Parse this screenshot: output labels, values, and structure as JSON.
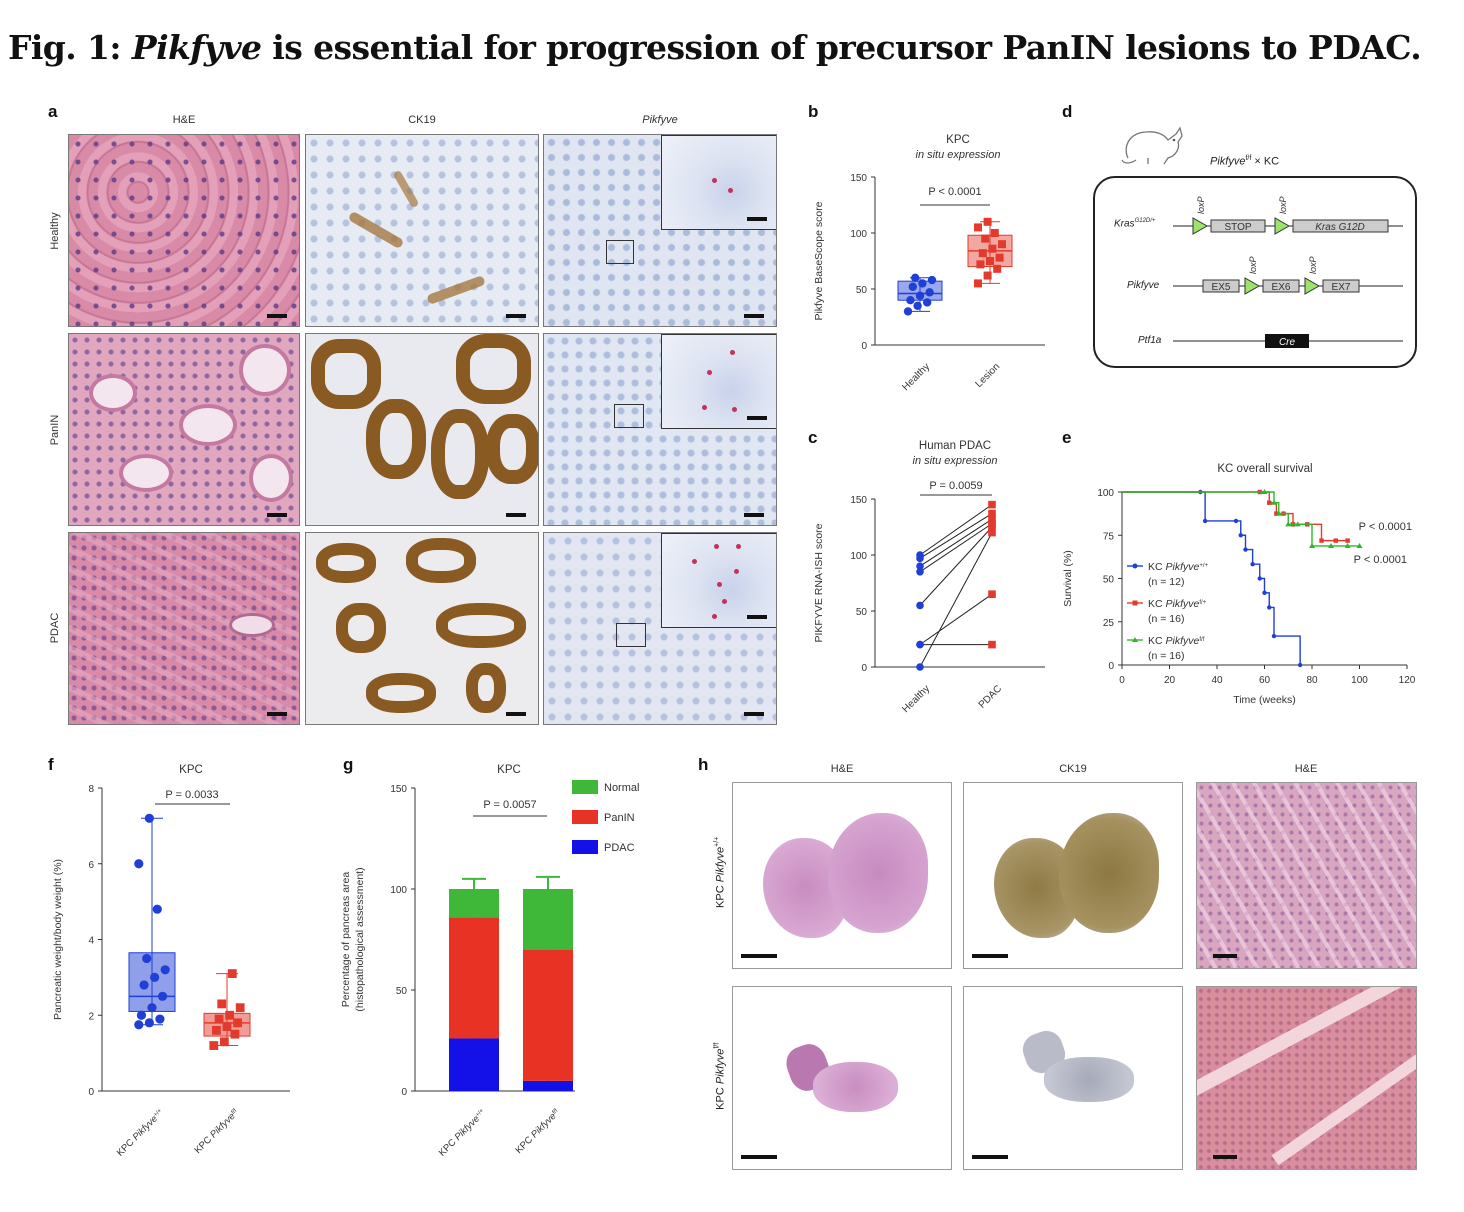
{
  "title": {
    "prefix": "Fig. 1: ",
    "gene": "Pikfyve",
    "rest": " is essential for progression of precursor PanIN lesions to PDAC."
  },
  "panel_letters": {
    "a": "a",
    "b": "b",
    "c": "c",
    "d": "d",
    "e": "e",
    "f": "f",
    "g": "g",
    "h": "h"
  },
  "panel_a": {
    "columns": [
      "H&E",
      "CK19",
      "Pikfyve"
    ],
    "rows": [
      "Healthy",
      "PanIN",
      "PDAC"
    ],
    "colors": {
      "he_base": "#d98aa6",
      "he_nuclei": "#5b3a87",
      "ck19_stain": "#8a5a23",
      "ck19_bg": "#e7ecf4",
      "ish_bg": "#dfe5f1",
      "ish_dot": "#c2325a"
    }
  },
  "panel_d": {
    "cross_label": "Pikfyve",
    "cross_sup": "f/f",
    "cross_suffix": " × KC",
    "kras_label": "Kras",
    "kras_sup": "G12D/+",
    "pikfyve_label": "Pikfyve",
    "ptf1a_label": "Ptf1a",
    "loxp": "loxP",
    "stop": "STOP",
    "kras_box": "Kras G12D",
    "ex5": "EX5",
    "ex6": "EX6",
    "ex7": "EX7",
    "cre": "Cre"
  },
  "panel_h": {
    "columns": [
      "H&E",
      "CK19",
      "H&E"
    ],
    "row_labels": [
      {
        "prefix": "KPC ",
        "gene": "Pikfyve",
        "sup": "+/+"
      },
      {
        "prefix": "KPC ",
        "gene": "Pikfyve",
        "sup": "f/f"
      }
    ]
  },
  "chart_data": [
    {
      "panel": "b",
      "type": "box",
      "title": "KPC",
      "subtitle": "in situ expression",
      "ylabel": "Pikfyve BaseScope score",
      "ylim": [
        0,
        150
      ],
      "yticks": [
        0,
        50,
        100,
        150
      ],
      "categories": [
        "Healthy",
        "Lesion"
      ],
      "annotation": "P < 0.0001",
      "colors": [
        "#1f3fd6",
        "#e23b2e"
      ],
      "series": [
        {
          "category": "Healthy",
          "points": [
            30,
            35,
            38,
            40,
            44,
            47,
            52,
            55,
            58,
            60
          ],
          "box": {
            "min": 30,
            "q1": 40,
            "median": 46,
            "q3": 57,
            "max": 60
          }
        },
        {
          "category": "Lesion",
          "points": [
            55,
            62,
            68,
            72,
            75,
            78,
            82,
            86,
            90,
            95,
            100,
            105,
            110
          ],
          "box": {
            "min": 55,
            "q1": 70,
            "median": 84,
            "q3": 98,
            "max": 110
          }
        }
      ]
    },
    {
      "panel": "c",
      "type": "line",
      "title": "Human PDAC",
      "subtitle": "in situ expression",
      "ylabel": "PIKFYVE RNA-ISH score",
      "ylim": [
        0,
        150
      ],
      "yticks": [
        0,
        50,
        100,
        150
      ],
      "categories": [
        "Healthy",
        "PDAC"
      ],
      "annotation": "P = 0.0059",
      "colors": [
        "#1f3fd6",
        "#e23b2e"
      ],
      "pairs": [
        [
          100,
          145
        ],
        [
          97,
          137
        ],
        [
          90,
          132
        ],
        [
          85,
          128
        ],
        [
          55,
          125
        ],
        [
          20,
          65
        ],
        [
          20,
          20
        ],
        [
          0,
          120
        ]
      ]
    },
    {
      "panel": "e",
      "type": "line",
      "title": "KC overall survival",
      "xlabel": "Time (weeks)",
      "ylabel": "Survival (%)",
      "xlim": [
        0,
        120
      ],
      "ylim": [
        0,
        100
      ],
      "xticks": [
        0,
        20,
        40,
        60,
        80,
        100,
        120
      ],
      "yticks": [
        0,
        25,
        50,
        75,
        100
      ],
      "annotations": [
        "P < 0.0001",
        "P < 0.0001"
      ],
      "series": [
        {
          "name": "KC Pikfyve",
          "sup": "+/+",
          "n": "(n = 12)",
          "color": "#1f3fd6",
          "x": [
            0,
            33,
            35,
            48,
            50,
            52,
            55,
            58,
            60,
            62,
            64,
            75
          ],
          "y": [
            100,
            100,
            83.3,
            83.3,
            75,
            66.7,
            58.3,
            50,
            41.7,
            33.3,
            16.7,
            0
          ]
        },
        {
          "name": "KC Pikfyve",
          "sup": "f/+",
          "n": "(n = 16)",
          "color": "#e23b2e",
          "x": [
            0,
            58,
            62,
            65,
            68,
            72,
            78,
            84,
            90,
            95
          ],
          "y": [
            100,
            100,
            93.8,
            87.5,
            87.5,
            81.3,
            81.3,
            71.9,
            71.9,
            71.9
          ]
        },
        {
          "name": "KC Pikfyve",
          "sup": "f/f",
          "n": "(n = 16)",
          "color": "#2fb82f",
          "x": [
            0,
            60,
            64,
            66,
            70,
            74,
            80,
            88,
            95,
            100
          ],
          "y": [
            100,
            100,
            93.8,
            87.5,
            81.3,
            81.3,
            68.8,
            68.8,
            68.8,
            68.8
          ]
        }
      ]
    },
    {
      "panel": "f",
      "type": "box",
      "title": "KPC",
      "ylabel": "Pancreatic weight/body weight (%)",
      "ylim": [
        0,
        8
      ],
      "yticks": [
        0,
        2,
        4,
        6,
        8
      ],
      "categories": [
        {
          "prefix": "KPC ",
          "gene": "Pikfyve",
          "sup": "+/+"
        },
        {
          "prefix": "KPC ",
          "gene": "Pikfyve",
          "sup": "f/f"
        }
      ],
      "annotation": "P = 0.0033",
      "colors": [
        "#1f3fd6",
        "#e23b2e"
      ],
      "series": [
        {
          "points": [
            1.75,
            1.8,
            1.9,
            2.0,
            2.2,
            2.5,
            2.8,
            3.0,
            3.2,
            3.5,
            4.8,
            6.0,
            7.2
          ],
          "box": {
            "min": 1.75,
            "q1": 2.1,
            "median": 2.5,
            "q3": 3.65,
            "max": 7.2
          }
        },
        {
          "points": [
            1.2,
            1.3,
            1.5,
            1.6,
            1.7,
            1.8,
            1.9,
            2.0,
            2.2,
            2.3,
            3.1
          ],
          "box": {
            "min": 1.2,
            "q1": 1.45,
            "median": 1.8,
            "q3": 2.05,
            "max": 3.1
          }
        }
      ]
    },
    {
      "panel": "g",
      "type": "bar",
      "stacked": true,
      "title": "KPC",
      "ylabel": "Percentage of pancreas area",
      "ylabel2": "(histopathological assessment)",
      "ylim": [
        0,
        150
      ],
      "yticks": [
        0,
        50,
        100,
        150
      ],
      "categories": [
        {
          "prefix": "KPC ",
          "gene": "Pikfyve",
          "sup": "+/+"
        },
        {
          "prefix": "KPC ",
          "gene": "Pikfyve",
          "sup": "f/f"
        }
      ],
      "annotation": "P = 0.0057",
      "series": [
        {
          "name": "PDAC",
          "color": "#1411e8",
          "values": [
            26,
            5
          ],
          "err": [
            8,
            2
          ]
        },
        {
          "name": "PanIN",
          "color": "#e83324",
          "values": [
            60,
            65
          ],
          "err": [
            7,
            6
          ]
        },
        {
          "name": "Normal",
          "color": "#3fb83a",
          "values": [
            14,
            30
          ],
          "err": [
            5,
            6
          ]
        }
      ],
      "legend": [
        "Normal",
        "PanIN",
        "PDAC"
      ]
    }
  ]
}
